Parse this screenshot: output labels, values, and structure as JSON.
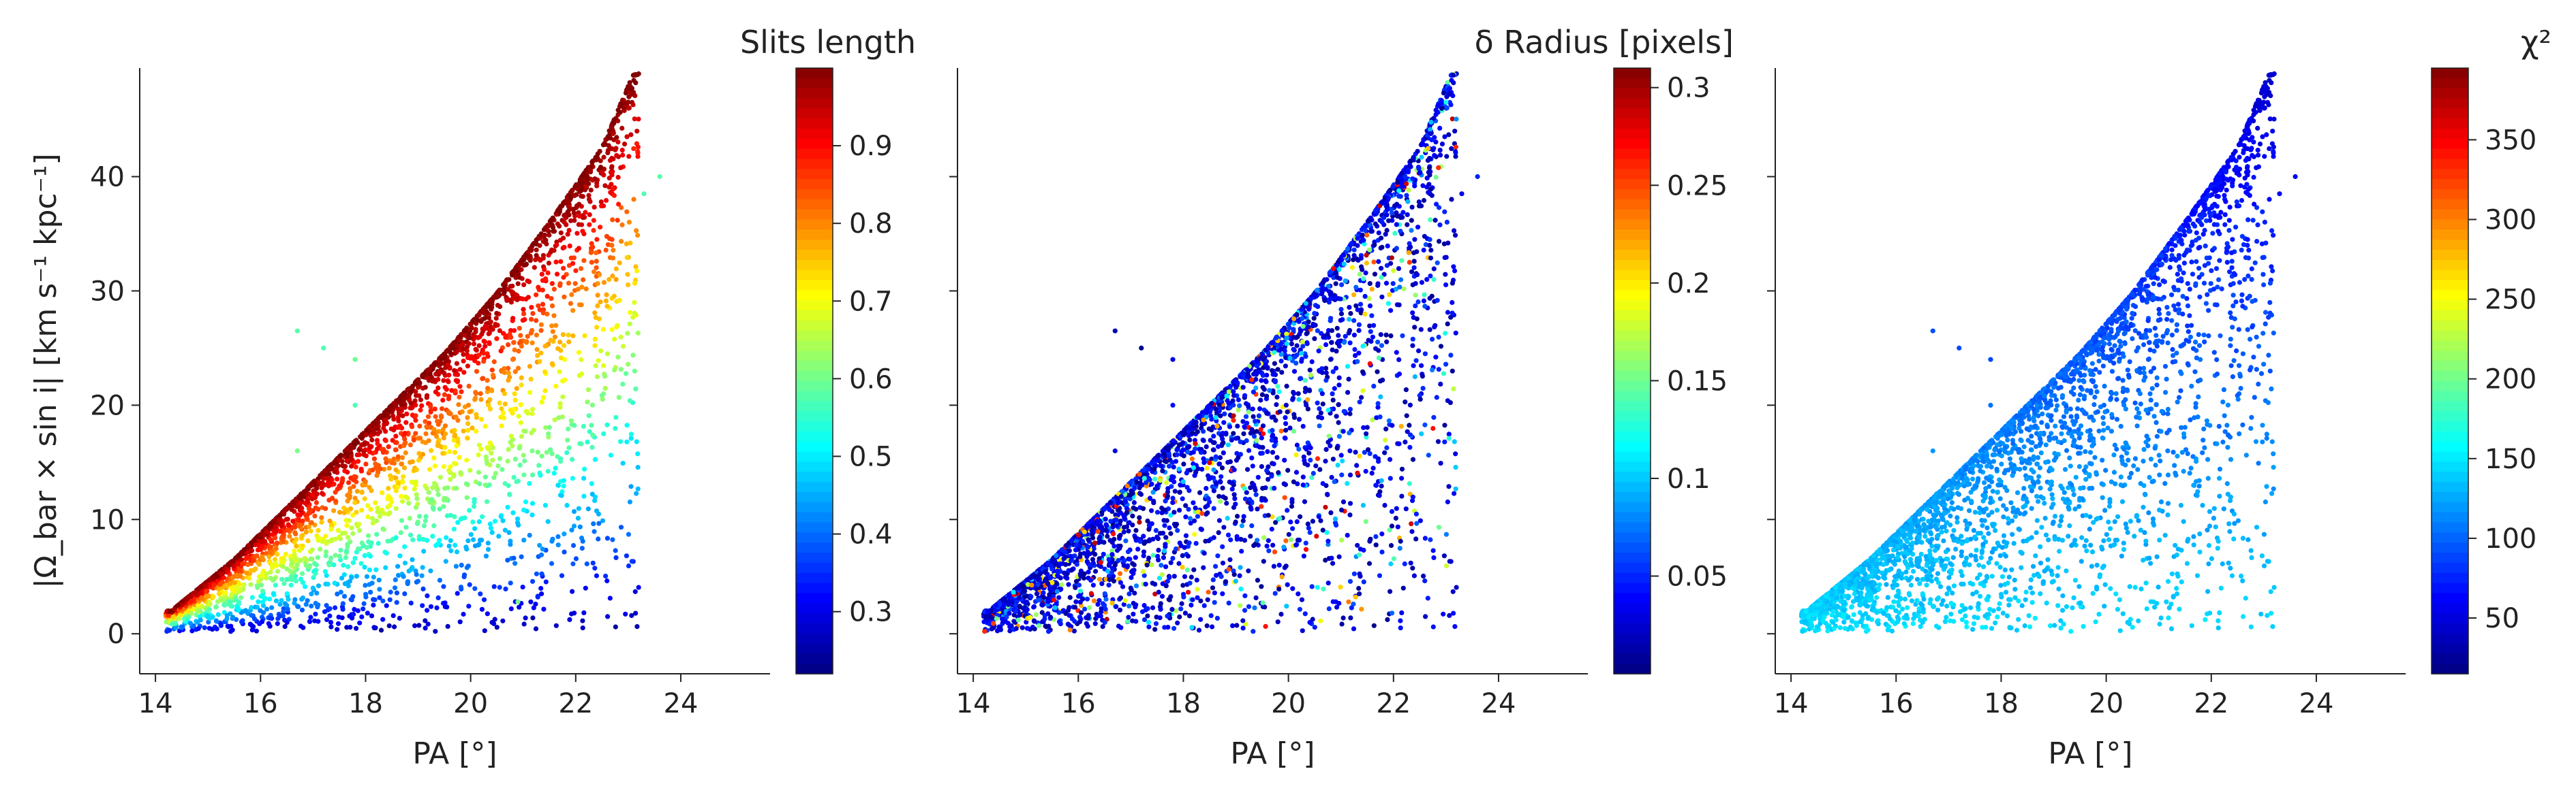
{
  "chart_data": [
    {
      "type": "scatter",
      "title": "",
      "colorbar_label": "Slits length",
      "xlabel": "PA [°]",
      "ylabel": "|Ω_bar × sin i|  [km s⁻¹ kpc⁻¹]",
      "xlim": [
        13.7,
        25.7
      ],
      "ylim": [
        -3.5,
        49.5
      ],
      "xticks": [
        14,
        16,
        18,
        20,
        22,
        24
      ],
      "yticks": [
        0,
        10,
        20,
        30,
        40
      ],
      "colormap": "jet",
      "color_range": [
        0.22,
        1.0
      ],
      "colorbar_ticks": [
        0.3,
        0.4,
        0.5,
        0.6,
        0.7,
        0.8,
        0.9
      ],
      "grid": false,
      "points_edge_curve": [
        [
          14.3,
          2.0
        ],
        [
          15.5,
          6.5
        ],
        [
          16.5,
          11.0
        ],
        [
          17.5,
          15.5
        ],
        [
          18.5,
          20.0
        ],
        [
          19.5,
          24.5
        ],
        [
          20.5,
          29.8
        ],
        [
          21.5,
          36.0
        ],
        [
          22.5,
          42.5
        ],
        [
          23.1,
          49.0
        ]
      ],
      "outliers": [
        [
          16.7,
          26.5
        ],
        [
          17.2,
          25.0
        ],
        [
          17.8,
          24.0
        ],
        [
          17.8,
          20.0
        ],
        [
          16.7,
          16.0
        ],
        [
          23.3,
          38.5
        ],
        [
          23.6,
          40.0
        ],
        [
          20.9,
          2.8
        ]
      ]
    },
    {
      "type": "scatter",
      "title": "",
      "colorbar_label": "δ Radius [pixels]",
      "xlabel": "PA [°]",
      "ylabel": "",
      "xlim": [
        13.7,
        25.7
      ],
      "ylim": [
        -3.5,
        49.5
      ],
      "xticks": [
        14,
        16,
        18,
        20,
        22,
        24
      ],
      "yticks": [
        0,
        10,
        20,
        30,
        40
      ],
      "colormap": "jet",
      "color_range": [
        0.0,
        0.31
      ],
      "colorbar_ticks": [
        0.05,
        0.1,
        0.15,
        0.2,
        0.25,
        0.3
      ],
      "grid": false
    },
    {
      "type": "scatter",
      "title": "",
      "colorbar_label": "χ²",
      "xlabel": "PA [°]",
      "ylabel": "",
      "xlim": [
        13.7,
        25.7
      ],
      "ylim": [
        -3.5,
        49.5
      ],
      "xticks": [
        14,
        16,
        18,
        20,
        22,
        24
      ],
      "yticks": [
        0,
        10,
        20,
        30,
        40
      ],
      "colormap": "jet",
      "color_range": [
        15,
        395
      ],
      "colorbar_ticks": [
        50,
        100,
        150,
        200,
        250,
        300,
        350
      ],
      "grid": false
    }
  ]
}
